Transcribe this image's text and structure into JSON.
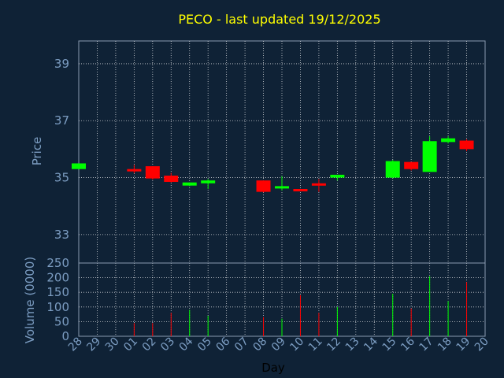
{
  "chart_data": [
    {
      "type": "candlestick",
      "title": "PECO - last updated 19/12/2025",
      "ylabel": "Price",
      "ylim": [
        32,
        39.8
      ],
      "yticks": [
        33,
        35,
        37,
        39
      ],
      "colors": {
        "up": "#00ff00",
        "down": "#ff0000",
        "title": "#ffff00",
        "axis_text": "#7c9dc2",
        "grid": "#ffffff",
        "background": "#0f2236"
      },
      "grid": true,
      "categories": [
        "28",
        "29",
        "30",
        "01",
        "02",
        "03",
        "04",
        "05",
        "06",
        "07",
        "08",
        "09",
        "10",
        "11",
        "12",
        "13",
        "14",
        "15",
        "16",
        "17",
        "18",
        "19",
        "20"
      ],
      "candles": [
        {
          "day": "28",
          "open": 35.3,
          "high": 35.5,
          "low": 35.3,
          "close": 35.5
        },
        {
          "day": "01",
          "open": 35.3,
          "high": 35.45,
          "low": 35.15,
          "close": 35.22
        },
        {
          "day": "02",
          "open": 35.4,
          "high": 35.4,
          "low": 34.93,
          "close": 34.97
        },
        {
          "day": "03",
          "open": 35.07,
          "high": 35.17,
          "low": 34.83,
          "close": 34.85
        },
        {
          "day": "04",
          "open": 34.72,
          "high": 34.83,
          "low": 34.7,
          "close": 34.83
        },
        {
          "day": "05",
          "open": 34.8,
          "high": 34.95,
          "low": 34.6,
          "close": 34.9
        },
        {
          "day": "08",
          "open": 34.9,
          "high": 34.9,
          "low": 34.48,
          "close": 34.5
        },
        {
          "day": "09",
          "open": 34.65,
          "high": 35.05,
          "low": 34.55,
          "close": 34.7
        },
        {
          "day": "10",
          "open": 34.6,
          "high": 34.6,
          "low": 34.55,
          "close": 34.57
        },
        {
          "day": "11",
          "open": 34.8,
          "high": 34.95,
          "low": 34.5,
          "close": 34.75
        },
        {
          "day": "12",
          "open": 35.0,
          "high": 35.1,
          "low": 34.9,
          "close": 35.1
        },
        {
          "day": "15",
          "open": 35.0,
          "high": 35.62,
          "low": 34.98,
          "close": 35.58
        },
        {
          "day": "16",
          "open": 35.55,
          "high": 35.55,
          "low": 35.25,
          "close": 35.3
        },
        {
          "day": "17",
          "open": 35.2,
          "high": 36.45,
          "low": 35.2,
          "close": 36.28
        },
        {
          "day": "18",
          "open": 36.25,
          "high": 36.45,
          "low": 36.2,
          "close": 36.38
        },
        {
          "day": "19",
          "open": 36.3,
          "high": 36.35,
          "low": 35.93,
          "close": 36.0
        }
      ]
    },
    {
      "type": "bar",
      "ylabel": "Volume (0000)",
      "xlabel": "Day",
      "ylim": [
        0,
        250
      ],
      "yticks": [
        0,
        50,
        100,
        150,
        200,
        250
      ],
      "categories": [
        "28",
        "29",
        "30",
        "01",
        "02",
        "03",
        "04",
        "05",
        "06",
        "07",
        "08",
        "09",
        "10",
        "11",
        "12",
        "13",
        "14",
        "15",
        "16",
        "17",
        "18",
        "19",
        "20"
      ],
      "grid": true,
      "bars": [
        {
          "day": "01",
          "value": 45,
          "direction": "down"
        },
        {
          "day": "02",
          "value": 45,
          "direction": "down"
        },
        {
          "day": "03",
          "value": 80,
          "direction": "down"
        },
        {
          "day": "04",
          "value": 90,
          "direction": "up"
        },
        {
          "day": "05",
          "value": 70,
          "direction": "up"
        },
        {
          "day": "08",
          "value": 65,
          "direction": "down"
        },
        {
          "day": "09",
          "value": 60,
          "direction": "up"
        },
        {
          "day": "10",
          "value": 140,
          "direction": "down"
        },
        {
          "day": "11",
          "value": 80,
          "direction": "down"
        },
        {
          "day": "12",
          "value": 100,
          "direction": "up"
        },
        {
          "day": "15",
          "value": 145,
          "direction": "up"
        },
        {
          "day": "16",
          "value": 95,
          "direction": "down"
        },
        {
          "day": "17",
          "value": 205,
          "direction": "up"
        },
        {
          "day": "18",
          "value": 120,
          "direction": "up"
        },
        {
          "day": "19",
          "value": 185,
          "direction": "down"
        }
      ]
    }
  ]
}
